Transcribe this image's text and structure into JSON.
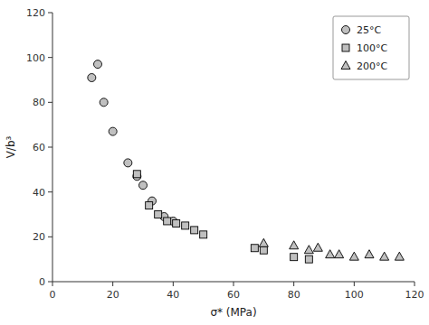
{
  "chart_data": {
    "type": "scatter",
    "xlabel": "σ* (MPa)",
    "ylabel": "V/b³",
    "series": [
      {
        "name": "25°C",
        "color": "#c0c0c0",
        "marker": "circle",
        "x": [
          13,
          15,
          17,
          20,
          25,
          28,
          30,
          33,
          37,
          40
        ],
        "values": [
          91,
          97,
          80,
          67,
          53,
          47,
          43,
          36,
          29,
          27
        ]
      },
      {
        "name": "100°C",
        "color": "#c0c0c0",
        "marker": "square",
        "x": [
          28,
          32,
          35,
          38,
          41,
          44,
          47,
          50,
          67,
          70,
          80,
          85
        ],
        "values": [
          48,
          34,
          30,
          27,
          26,
          25,
          23,
          21,
          15,
          14,
          11,
          10
        ]
      },
      {
        "name": "200°C",
        "color": "#c0c0c0",
        "marker": "triangle",
        "x": [
          70,
          80,
          85,
          88,
          92,
          95,
          100,
          105,
          110,
          115
        ],
        "values": [
          17,
          16,
          14,
          15,
          12,
          12,
          11,
          12,
          11,
          11
        ]
      }
    ],
    "xlim": [
      0,
      120
    ],
    "ylim": [
      0,
      120
    ],
    "xticks": [
      0,
      20,
      40,
      60,
      80,
      100,
      120
    ],
    "yticks": [
      0,
      20,
      40,
      60,
      80,
      100,
      120
    ],
    "grid": false,
    "legend": "upper-right"
  }
}
